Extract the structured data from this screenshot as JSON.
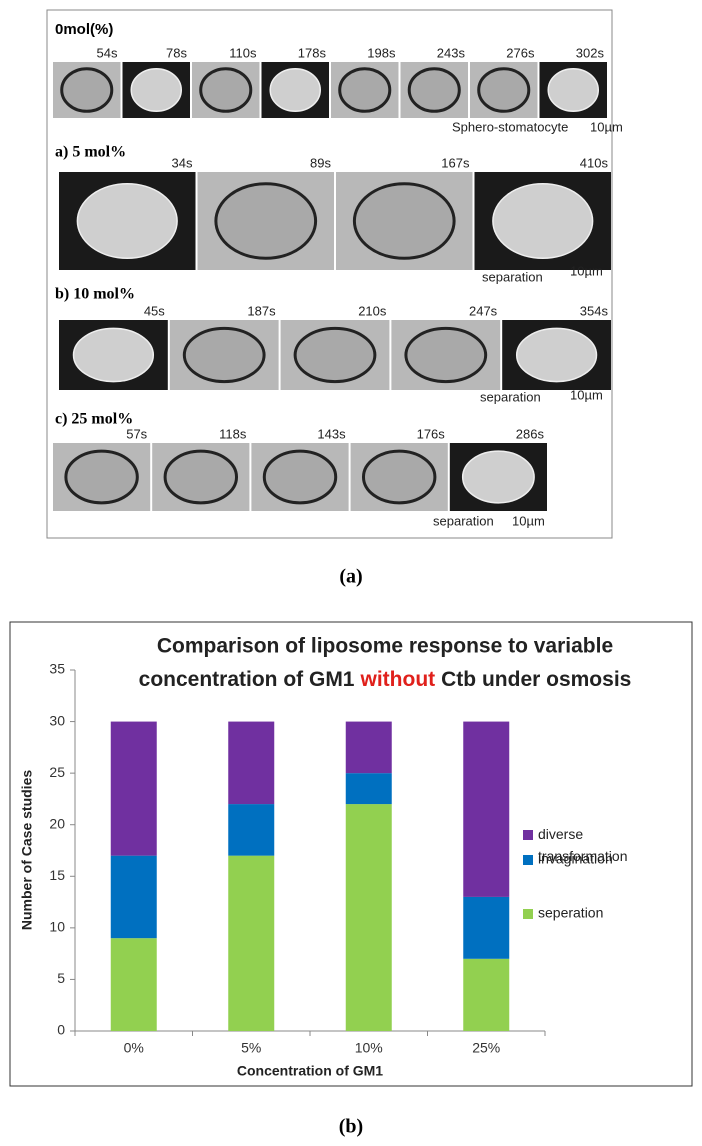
{
  "panel_a": {
    "rows": [
      {
        "label": "0mol(%)",
        "frames": [
          "54s",
          "78s",
          "110s",
          "178s",
          "198s",
          "243s",
          "276s",
          "302s"
        ],
        "notes": [
          "Sphero-stomatocyte",
          "10µm"
        ]
      },
      {
        "label": "a) 5 mol%",
        "frames": [
          "34s",
          "89s",
          "167s",
          "410s"
        ],
        "notes": [
          "separation",
          "10µm"
        ]
      },
      {
        "label": "b) 10 mol%",
        "frames": [
          "45s",
          "187s",
          "210s",
          "247s",
          "354s"
        ],
        "notes": [
          "separation",
          "10µm"
        ]
      },
      {
        "label": "c) 25 mol%",
        "frames": [
          "57s",
          "118s",
          "143s",
          "176s",
          "286s"
        ],
        "notes": [
          "separation",
          "10µm"
        ]
      }
    ],
    "caption": "(a)"
  },
  "panel_b_caption": "(b)",
  "chart_data": {
    "type": "stacked-bar",
    "title": {
      "line1": "Comparison of liposome response to variable",
      "line2_before": "concentration of GM1",
      "highlight": "without",
      "line2_after": "Ctb under osmosis"
    },
    "x_label": "Concentration of GM1",
    "y_label": "Number of Case studies",
    "categories": [
      "0%",
      "5%",
      "10%",
      "25%"
    ],
    "series": [
      {
        "name": "seperation",
        "color": "#92d050",
        "values": [
          9,
          17,
          22,
          7
        ]
      },
      {
        "name": "invagination",
        "color": "#0070c0",
        "values": [
          8,
          5,
          3,
          6
        ]
      },
      {
        "name": "diverse transformation",
        "color": "#7030a0",
        "values": [
          13,
          8,
          5,
          17
        ]
      }
    ],
    "ylim": [
      0,
      35
    ],
    "yticks": [
      0,
      5,
      10,
      15,
      20,
      25,
      30,
      35
    ],
    "grid": false,
    "legend": "right"
  }
}
